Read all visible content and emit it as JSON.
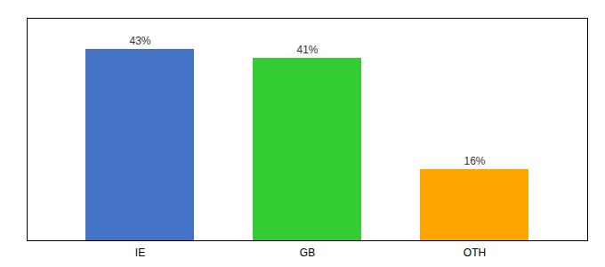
{
  "chart_data": {
    "type": "bar",
    "categories": [
      "IE",
      "GB",
      "OTH"
    ],
    "values": [
      43,
      41,
      16
    ],
    "value_labels": [
      "43%",
      "41%",
      "16%"
    ],
    "colors": [
      "#4472C4",
      "#33CC33",
      "#FFA500"
    ],
    "ylim": [
      0,
      50
    ],
    "data_labels": true,
    "tick_labels": "x"
  }
}
